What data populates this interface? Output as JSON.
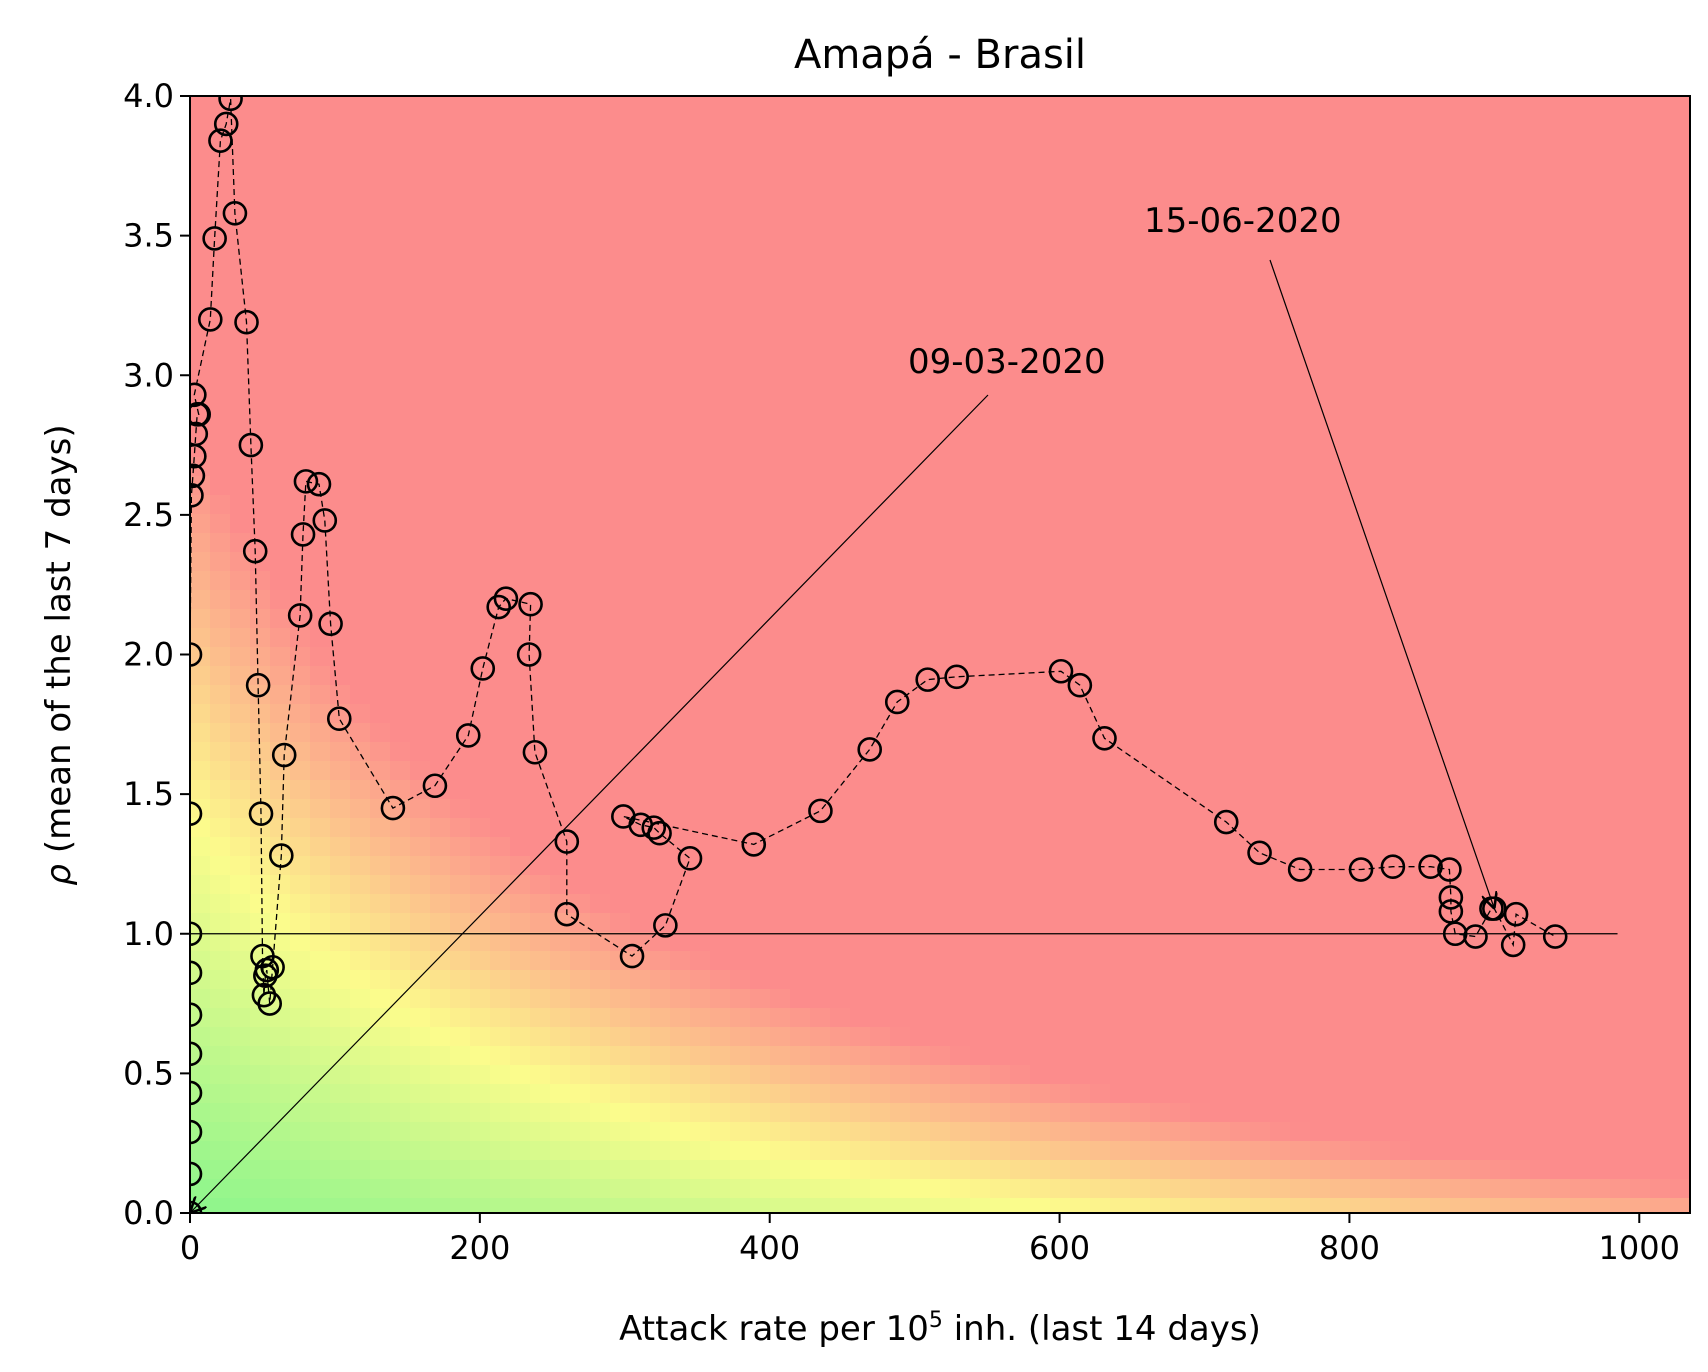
{
  "chart_data": {
    "type": "scatter",
    "title": "Amapá - Brasil",
    "xlabel_parts": [
      "Attack rate per 10",
      "5",
      " inh. (last 14 days)"
    ],
    "ylabel_parts": [
      "ρ",
      " (mean of the last 7 days)"
    ],
    "xlim": [
      0,
      1035
    ],
    "ylim": [
      0,
      4.0
    ],
    "x_ticks": [
      0,
      200,
      400,
      600,
      800,
      1000
    ],
    "y_ticks": [
      0.0,
      0.5,
      1.0,
      1.5,
      2.0,
      2.5,
      3.0,
      3.5,
      4.0
    ],
    "x_tick_labels": [
      "0",
      "200",
      "400",
      "600",
      "800",
      "1000"
    ],
    "y_tick_labels": [
      "0.0",
      "0.5",
      "1.0",
      "1.5",
      "2.0",
      "2.5",
      "3.0",
      "3.5",
      "4.0"
    ],
    "grid": false,
    "background": "gradient from green (low risk, bottom-left) through yellow to red (high risk, top-right)",
    "reference_line": {
      "y": 1.0,
      "x_range": [
        0,
        985
      ]
    },
    "colors": {
      "green": "#8cf58c",
      "yellow": "#fcfc8c",
      "orange": "#fcc28c",
      "red": "#fc8c8c"
    },
    "series": [
      {
        "marker": "open circle",
        "line": "dashed",
        "points": [
          [
            0,
            0.0
          ],
          [
            0,
            0.14
          ],
          [
            0,
            0.29
          ],
          [
            0,
            0.43
          ],
          [
            0,
            0.57
          ],
          [
            0,
            0.71
          ],
          [
            0,
            0.86
          ],
          [
            0,
            1.0
          ],
          [
            0,
            1.43
          ],
          [
            0,
            2.0
          ],
          [
            1,
            2.57
          ],
          [
            2,
            2.64
          ],
          [
            3,
            2.71
          ],
          [
            4,
            2.79
          ],
          [
            5,
            2.86
          ],
          [
            6,
            2.86
          ],
          [
            3,
            2.93
          ],
          [
            14,
            3.2
          ],
          [
            17,
            3.49
          ],
          [
            21,
            3.84
          ],
          [
            25,
            3.9
          ],
          [
            28,
            3.99
          ],
          [
            31,
            3.58
          ],
          [
            39,
            3.19
          ],
          [
            42,
            2.75
          ],
          [
            45,
            2.37
          ],
          [
            47,
            1.89
          ],
          [
            49,
            1.43
          ],
          [
            50,
            0.92
          ],
          [
            51,
            0.78
          ],
          [
            52,
            0.85
          ],
          [
            53,
            0.87
          ],
          [
            55,
            0.75
          ],
          [
            57,
            0.88
          ],
          [
            63,
            1.28
          ],
          [
            65,
            1.64
          ],
          [
            76,
            2.14
          ],
          [
            78,
            2.43
          ],
          [
            80,
            2.62
          ],
          [
            89,
            2.61
          ],
          [
            93,
            2.48
          ],
          [
            97,
            2.11
          ],
          [
            103,
            1.77
          ],
          [
            140,
            1.45
          ],
          [
            169,
            1.53
          ],
          [
            192,
            1.71
          ],
          [
            202,
            1.95
          ],
          [
            213,
            2.17
          ],
          [
            218,
            2.2
          ],
          [
            235,
            2.18
          ],
          [
            234,
            2.0
          ],
          [
            238,
            1.65
          ],
          [
            260,
            1.33
          ],
          [
            260,
            1.07
          ],
          [
            305,
            0.92
          ],
          [
            328,
            1.03
          ],
          [
            345,
            1.27
          ],
          [
            324,
            1.36
          ],
          [
            320,
            1.38
          ],
          [
            311,
            1.39
          ],
          [
            299,
            1.42
          ],
          [
            389,
            1.32
          ],
          [
            435,
            1.44
          ],
          [
            469,
            1.66
          ],
          [
            488,
            1.83
          ],
          [
            509,
            1.91
          ],
          [
            529,
            1.92
          ],
          [
            601,
            1.94
          ],
          [
            614,
            1.89
          ],
          [
            631,
            1.7
          ],
          [
            715,
            1.4
          ],
          [
            738,
            1.29
          ],
          [
            766,
            1.23
          ],
          [
            808,
            1.23
          ],
          [
            830,
            1.24
          ],
          [
            856,
            1.24
          ],
          [
            869,
            1.23
          ],
          [
            870,
            1.13
          ],
          [
            870,
            1.08
          ],
          [
            873,
            1.0
          ],
          [
            887,
            0.99
          ],
          [
            898,
            1.09
          ],
          [
            900,
            1.09
          ],
          [
            913,
            0.96
          ],
          [
            915,
            1.07
          ],
          [
            942,
            0.99
          ]
        ]
      }
    ],
    "annotations": [
      {
        "text": "09-03-2020",
        "point": [
          0,
          0.0
        ]
      },
      {
        "text": "15-06-2020",
        "point": [
          900,
          1.09
        ]
      }
    ]
  }
}
